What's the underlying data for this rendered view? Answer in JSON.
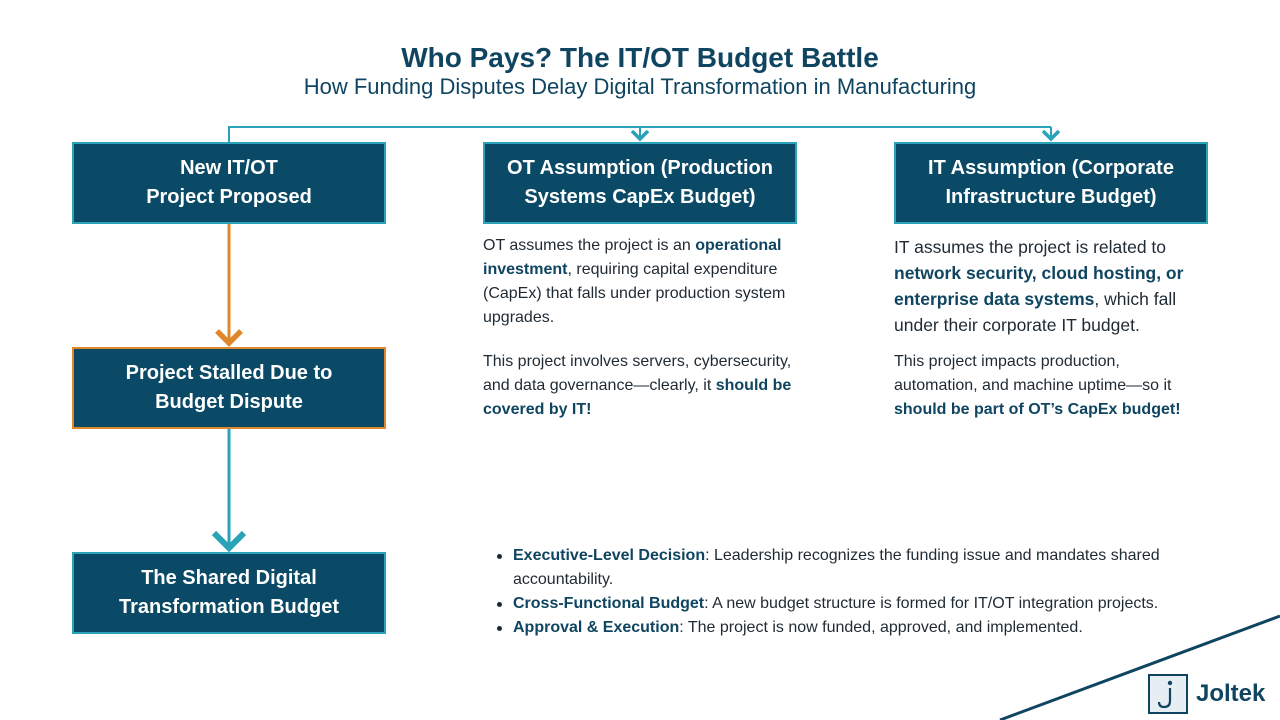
{
  "header": {
    "title": "Who Pays? The IT/OT Budget Battle",
    "subtitle": "How Funding Disputes Delay Digital Transformation in Manufacturing"
  },
  "boxes": {
    "proposed": {
      "line1": "New IT/OT",
      "line2": "Project Proposed"
    },
    "stalled": {
      "line1": "Project Stalled Due to",
      "line2": "Budget Dispute"
    },
    "shared": {
      "line1": "The Shared Digital",
      "line2": "Transformation Budget"
    },
    "ot": {
      "line1": "OT Assumption (Production",
      "line2": "Systems CapEx Budget)"
    },
    "it": {
      "line1": "IT Assumption (Corporate",
      "line2": "Infrastructure Budget)"
    }
  },
  "ot_text": {
    "p1_a": "OT assumes the project is an ",
    "p1_b": "operational investment",
    "p1_c": ", requiring capital expenditure (CapEx) that falls under production system upgrades.",
    "p2_a": "This project involves servers, cybersecurity, and data governance—clearly, it ",
    "p2_b": "should be covered by IT!"
  },
  "it_text": {
    "p1_a": "IT assumes the project is related to ",
    "p1_b": "network security, cloud hosting, or enterprise data systems",
    "p1_c": ", which fall under their corporate IT budget.",
    "p2_a": "This project impacts production, automation, and machine uptime—so it ",
    "p2_b": "should be part of OT’s CapEx budget!"
  },
  "bullets": [
    {
      "label": "Executive-Level Decision",
      "text": ": Leadership recognizes the funding issue and mandates shared accountability."
    },
    {
      "label": "Cross-Functional Budget",
      "text": ": A new budget structure is formed for IT/OT integration projects."
    },
    {
      "label": "Approval & Execution",
      "text": ": The project is now funded, approved, and implemented."
    }
  ],
  "logo": {
    "name": "Joltek",
    "mark": "j"
  },
  "colors": {
    "box_fill": "#0b4a66",
    "box_border": "#2aa2b8",
    "alert": "#e0862b",
    "title": "#0f4560"
  }
}
